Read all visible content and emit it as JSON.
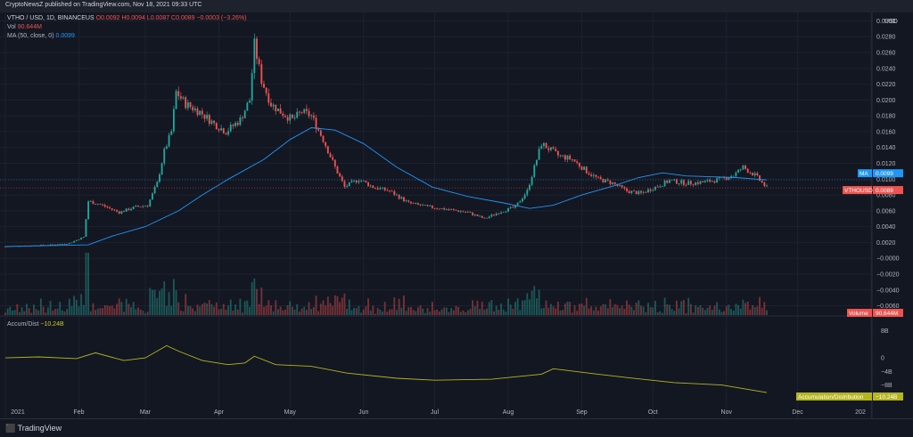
{
  "header": {
    "publish_text": "CryptoNewsZ published on TradingView.com, Nov 18, 2021 09:33 UTC"
  },
  "legend": {
    "symbol": "VTHO / USD, 1D, BINANCEUS",
    "ohlc": "O0.0092 H0.0094 L0.0087 C0.0089 −0.0003 (−3.26%)",
    "vol_label": "Vol",
    "vol_value": "90.644M",
    "ma_label": "MA (50, close, 0)",
    "ma_value": "0.0099",
    "ad_label": "Accum/Dist",
    "ad_value": "−10.24B"
  },
  "axis": {
    "currency": "USD",
    "price_ticks": [
      "0.0300",
      "0.0280",
      "0.0260",
      "0.0240",
      "0.0220",
      "0.0200",
      "0.0180",
      "0.0160",
      "0.0140",
      "0.0120",
      "0.0100",
      "0.0080",
      "0.0060",
      "0.0040",
      "0.0020",
      "−0.0000",
      "−0.0020",
      "−0.0040",
      "−0.0060"
    ],
    "ad_ticks": [
      "8B",
      "0",
      "−4B",
      "−8B"
    ],
    "months": [
      "2021",
      "Feb",
      "Mar",
      "Apr",
      "May",
      "Jun",
      "Jul",
      "Aug",
      "Sep",
      "Oct",
      "Nov",
      "Dec",
      "202"
    ]
  },
  "tags": {
    "ma_label": "MA",
    "ma_value": "0.0099",
    "sym_label": "VTHOUSD",
    "sym_value": "0.0089",
    "volume_label": "Volume",
    "volume_value": "90.644M",
    "ad_label": "Accumulation/Distribution",
    "ad_value": "−10.24B"
  },
  "footer": {
    "brand": "TradingView"
  },
  "colors": {
    "up": "#26a69a",
    "down": "#ef5350",
    "ma": "#2196f3",
    "ad": "#b5b520",
    "bg": "#131722"
  },
  "chart_data": {
    "type": "candlestick",
    "title": "VTHO / USD, 1D, BINANCEUS",
    "ylim": [
      -0.0065,
      0.0305
    ],
    "price_path": [
      [
        "2021-01-01",
        0.0015
      ],
      [
        "2021-01-20",
        0.0017
      ],
      [
        "2021-01-28",
        0.0019
      ],
      [
        "2021-02-03",
        0.0027
      ],
      [
        "2021-02-05",
        0.0072
      ],
      [
        "2021-02-10",
        0.0068
      ],
      [
        "2021-02-18",
        0.0058
      ],
      [
        "2021-02-25",
        0.0065
      ],
      [
        "2021-03-02",
        0.0067
      ],
      [
        "2021-03-06",
        0.0095
      ],
      [
        "2021-03-09",
        0.0135
      ],
      [
        "2021-03-12",
        0.016
      ],
      [
        "2021-03-14",
        0.021
      ],
      [
        "2021-03-18",
        0.0195
      ],
      [
        "2021-03-24",
        0.0185
      ],
      [
        "2021-03-30",
        0.017
      ],
      [
        "2021-04-04",
        0.016
      ],
      [
        "2021-04-10",
        0.0175
      ],
      [
        "2021-04-14",
        0.02
      ],
      [
        "2021-04-16",
        0.027
      ],
      [
        "2021-04-19",
        0.0225
      ],
      [
        "2021-04-23",
        0.0195
      ],
      [
        "2021-04-27",
        0.0185
      ],
      [
        "2021-05-02",
        0.0175
      ],
      [
        "2021-05-06",
        0.0185
      ],
      [
        "2021-05-10",
        0.018
      ],
      [
        "2021-05-15",
        0.015
      ],
      [
        "2021-05-20",
        0.0115
      ],
      [
        "2021-05-24",
        0.009
      ],
      [
        "2021-05-30",
        0.01
      ],
      [
        "2021-06-05",
        0.009
      ],
      [
        "2021-06-12",
        0.0085
      ],
      [
        "2021-06-20",
        0.007
      ],
      [
        "2021-06-28",
        0.0065
      ],
      [
        "2021-07-06",
        0.0062
      ],
      [
        "2021-07-15",
        0.0058
      ],
      [
        "2021-07-22",
        0.005
      ],
      [
        "2021-07-28",
        0.0058
      ],
      [
        "2021-08-04",
        0.0065
      ],
      [
        "2021-08-09",
        0.0085
      ],
      [
        "2021-08-12",
        0.0115
      ],
      [
        "2021-08-15",
        0.0145
      ],
      [
        "2021-08-22",
        0.013
      ],
      [
        "2021-08-28",
        0.0125
      ],
      [
        "2021-09-03",
        0.011
      ],
      [
        "2021-09-08",
        0.01
      ],
      [
        "2021-09-14",
        0.0095
      ],
      [
        "2021-09-20",
        0.0085
      ],
      [
        "2021-09-26",
        0.0082
      ],
      [
        "2021-10-02",
        0.009
      ],
      [
        "2021-10-08",
        0.0098
      ],
      [
        "2021-10-15",
        0.0095
      ],
      [
        "2021-10-22",
        0.0096
      ],
      [
        "2021-10-30",
        0.01
      ],
      [
        "2021-11-04",
        0.0105
      ],
      [
        "2021-11-08",
        0.0115
      ],
      [
        "2021-11-13",
        0.0105
      ],
      [
        "2021-11-18",
        0.0089
      ]
    ],
    "ma_path": [
      [
        "2021-01-01",
        0.0015
      ],
      [
        "2021-02-05",
        0.0017
      ],
      [
        "2021-02-15",
        0.0028
      ],
      [
        "2021-03-01",
        0.004
      ],
      [
        "2021-03-15",
        0.006
      ],
      [
        "2021-03-25",
        0.008
      ],
      [
        "2021-04-05",
        0.01
      ],
      [
        "2021-04-20",
        0.0125
      ],
      [
        "2021-05-01",
        0.015
      ],
      [
        "2021-05-10",
        0.0165
      ],
      [
        "2021-05-20",
        0.0162
      ],
      [
        "2021-06-01",
        0.0145
      ],
      [
        "2021-06-15",
        0.0115
      ],
      [
        "2021-06-30",
        0.009
      ],
      [
        "2021-07-15",
        0.0078
      ],
      [
        "2021-07-30",
        0.007
      ],
      [
        "2021-08-10",
        0.0063
      ],
      [
        "2021-08-20",
        0.0067
      ],
      [
        "2021-09-01",
        0.008
      ],
      [
        "2021-09-15",
        0.0092
      ],
      [
        "2021-09-25",
        0.0102
      ],
      [
        "2021-10-05",
        0.0108
      ],
      [
        "2021-10-15",
        0.0104
      ],
      [
        "2021-10-25",
        0.0103
      ],
      [
        "2021-11-05",
        0.0102
      ],
      [
        "2021-11-18",
        0.0099
      ]
    ],
    "ad_path": [
      [
        "2021-01-01",
        0.0
      ],
      [
        "2021-01-15",
        0.3
      ],
      [
        "2021-01-31",
        -0.2
      ],
      [
        "2021-02-08",
        1.5
      ],
      [
        "2021-02-20",
        -0.8
      ],
      [
        "2021-03-01",
        0.0
      ],
      [
        "2021-03-10",
        3.6
      ],
      [
        "2021-03-15",
        2.0
      ],
      [
        "2021-03-25",
        -0.8
      ],
      [
        "2021-04-05",
        -2.0
      ],
      [
        "2021-04-12",
        -1.5
      ],
      [
        "2021-04-16",
        0.5
      ],
      [
        "2021-04-25",
        -2.0
      ],
      [
        "2021-05-10",
        -2.5
      ],
      [
        "2021-05-25",
        -4.5
      ],
      [
        "2021-06-15",
        -6.0
      ],
      [
        "2021-07-01",
        -6.6
      ],
      [
        "2021-07-25",
        -6.3
      ],
      [
        "2021-08-15",
        -4.8
      ],
      [
        "2021-08-20",
        -3.2
      ],
      [
        "2021-09-05",
        -4.6
      ],
      [
        "2021-09-20",
        -5.8
      ],
      [
        "2021-10-10",
        -7.3
      ],
      [
        "2021-10-30",
        -8.0
      ],
      [
        "2021-11-18",
        -10.24
      ]
    ]
  }
}
